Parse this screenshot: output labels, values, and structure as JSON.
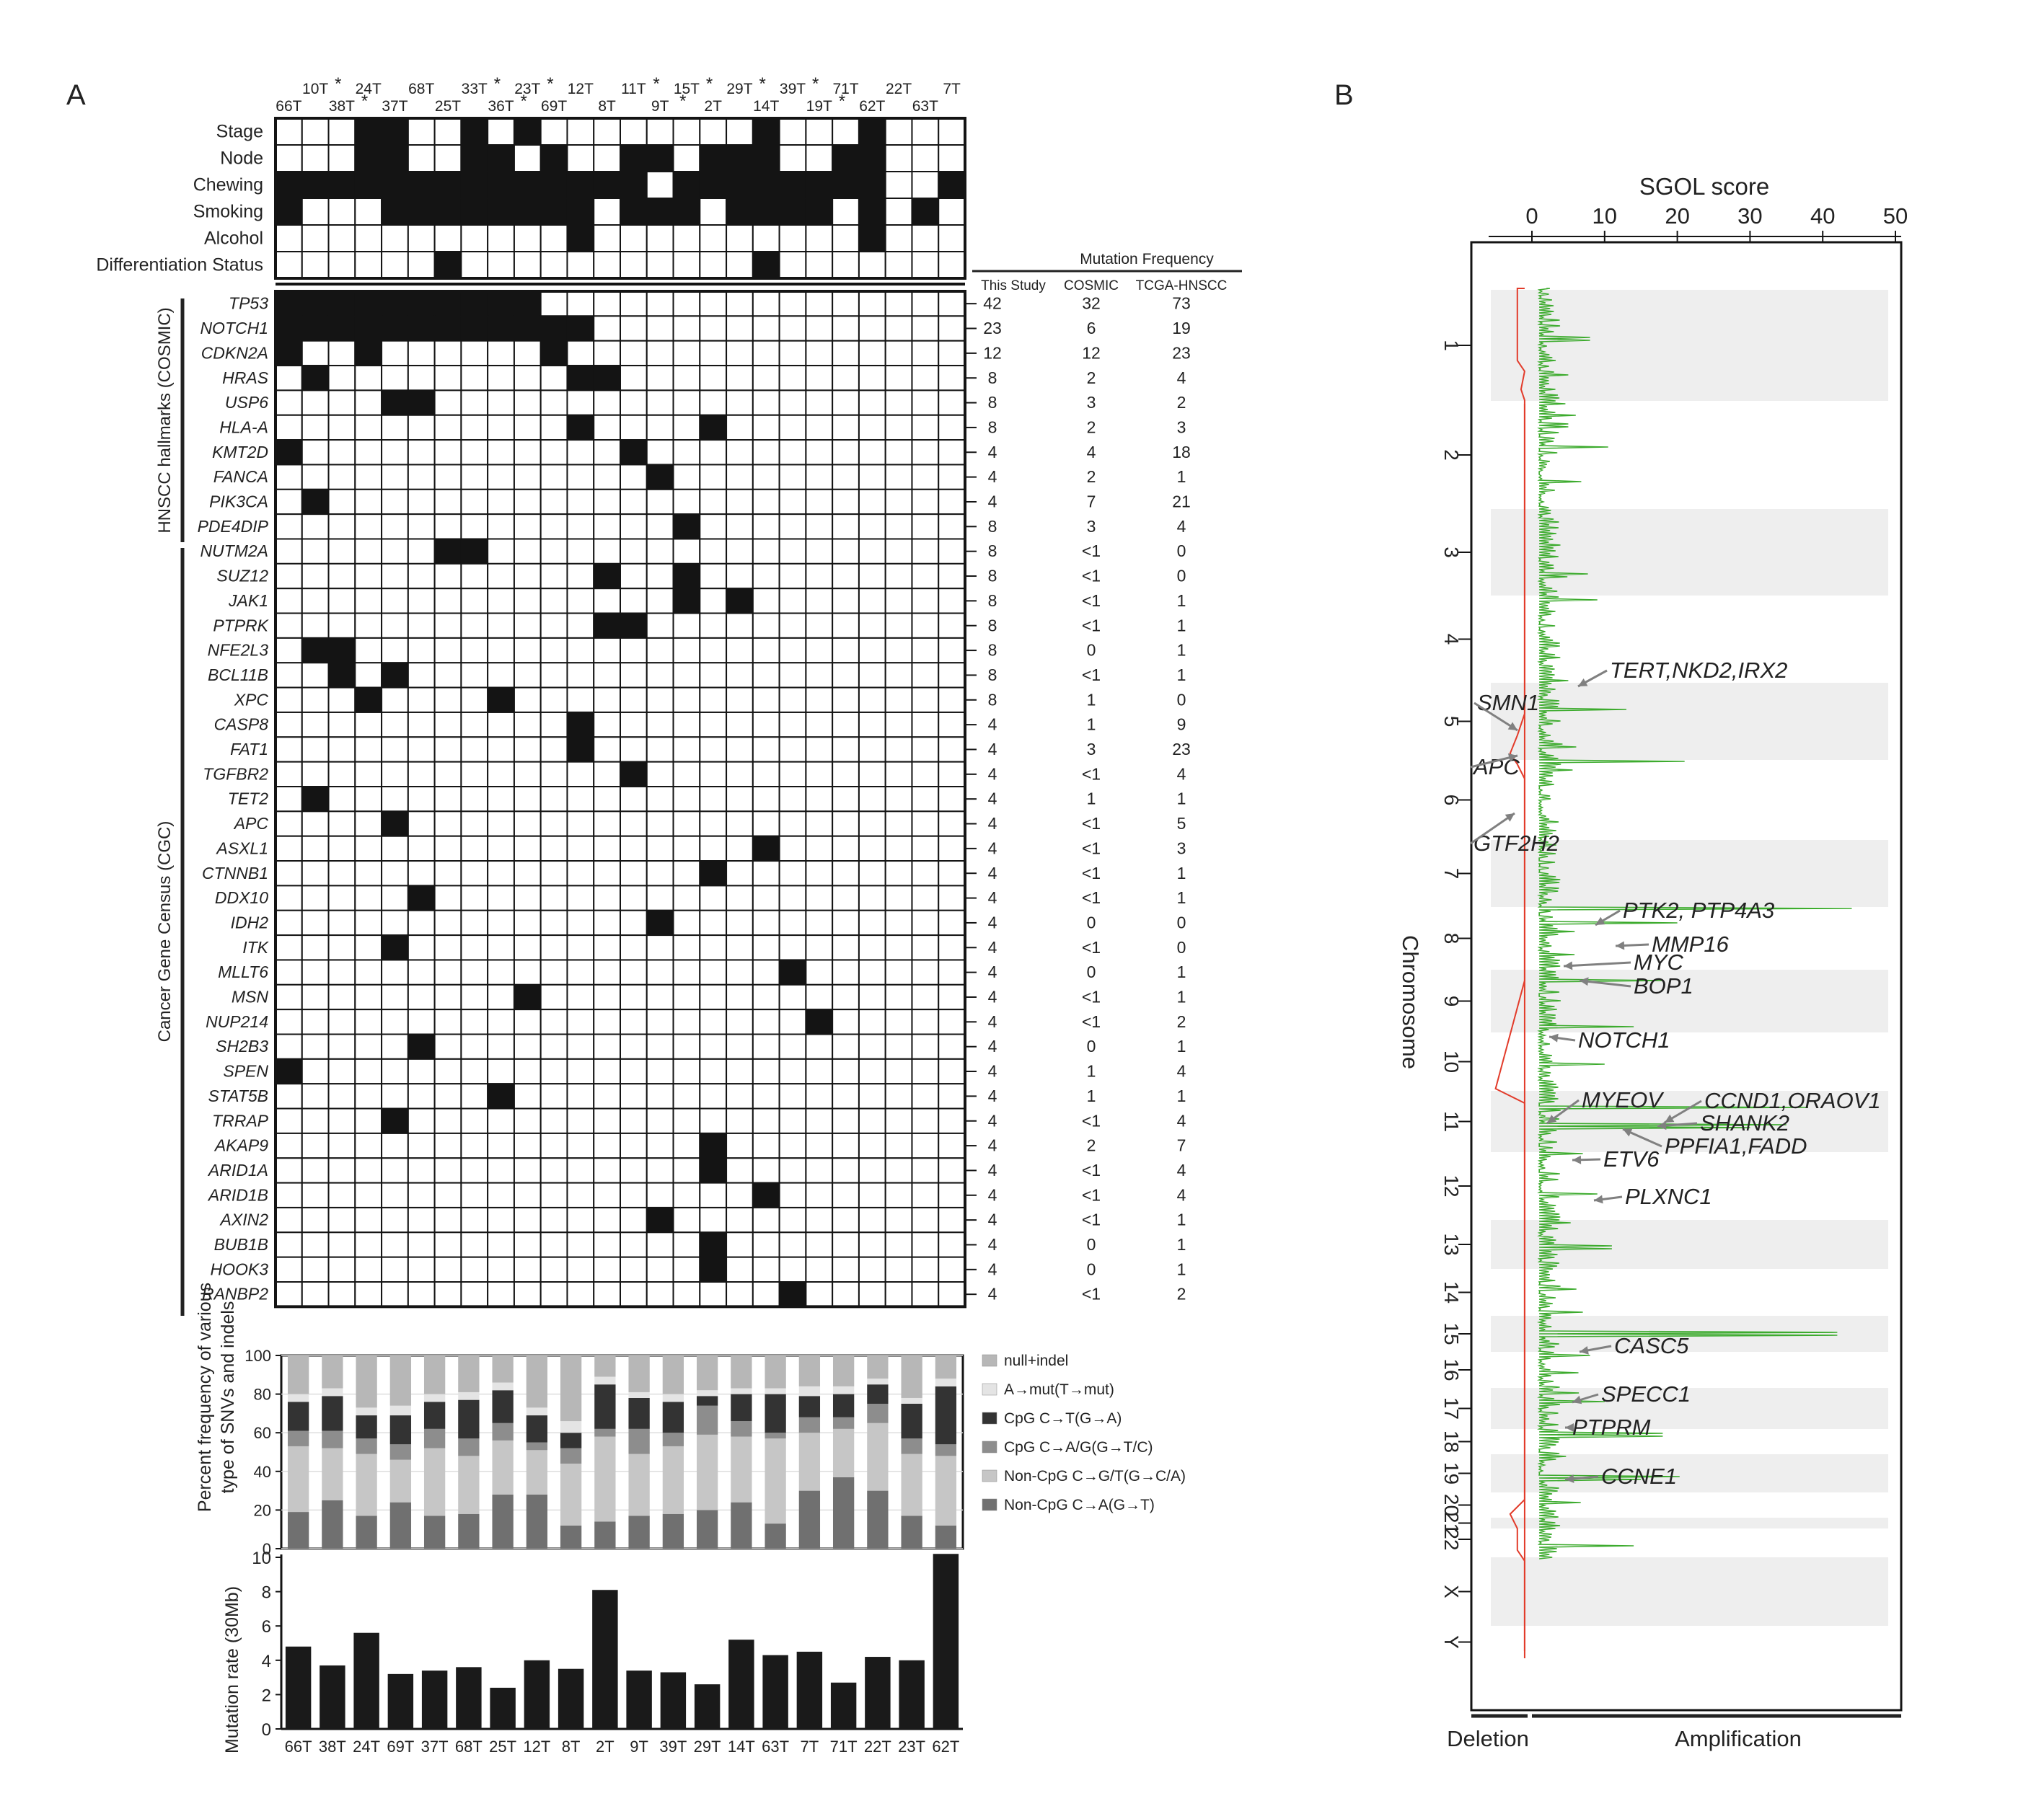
{
  "panels": {
    "a_label": "A",
    "b_label": "B"
  },
  "samples_top": [
    {
      "id": "66T",
      "star": false
    },
    {
      "id": "10T",
      "star": true
    },
    {
      "id": "38T",
      "star": true
    },
    {
      "id": "24T",
      "star": false
    },
    {
      "id": "37T",
      "star": false
    },
    {
      "id": "68T",
      "star": false
    },
    {
      "id": "25T",
      "star": false
    },
    {
      "id": "33T",
      "star": true
    },
    {
      "id": "36T",
      "star": true
    },
    {
      "id": "23T",
      "star": true
    },
    {
      "id": "69T",
      "star": false
    },
    {
      "id": "12T",
      "star": false
    },
    {
      "id": "8T",
      "star": false
    },
    {
      "id": "11T",
      "star": true
    },
    {
      "id": "9T",
      "star": true
    },
    {
      "id": "15T",
      "star": true
    },
    {
      "id": "2T",
      "star": false
    },
    {
      "id": "29T",
      "star": true
    },
    {
      "id": "14T",
      "star": false
    },
    {
      "id": "39T",
      "star": true
    },
    {
      "id": "19T",
      "star": true
    },
    {
      "id": "71T",
      "star": false
    },
    {
      "id": "62T",
      "star": false
    },
    {
      "id": "22T",
      "star": false
    },
    {
      "id": "63T",
      "star": false
    },
    {
      "id": "7T",
      "star": false
    }
  ],
  "clinical": {
    "rows": [
      {
        "label": "Stage",
        "filled": [
          3,
          4,
          7,
          9,
          18,
          22
        ]
      },
      {
        "label": "Node",
        "filled": [
          3,
          4,
          7,
          8,
          10,
          13,
          14,
          16,
          17,
          18,
          21,
          22
        ]
      },
      {
        "label": "Chewing",
        "filled": [
          0,
          1,
          2,
          3,
          4,
          5,
          6,
          7,
          8,
          9,
          10,
          11,
          12,
          13,
          15,
          16,
          17,
          18,
          19,
          20,
          21,
          22,
          25
        ]
      },
      {
        "label": "Smoking",
        "filled": [
          0,
          4,
          5,
          6,
          7,
          8,
          9,
          10,
          11,
          13,
          14,
          15,
          17,
          18,
          19,
          20,
          22,
          24
        ]
      },
      {
        "label": "Alcohol",
        "filled": [
          11,
          22
        ]
      },
      {
        "label": "Differentiation Status",
        "filled": [
          6,
          18
        ]
      }
    ]
  },
  "freq_header": {
    "title": "Mutation Frequency",
    "col1": "This Study",
    "col2": "COSMIC",
    "col3": "TCGA-HNSCC"
  },
  "group_labels": {
    "hnscc": "HNSCC hallmarks (COSMIC)",
    "cgc": "Cancer Gene Census (CGC)"
  },
  "genes": [
    {
      "name": "TP53",
      "filled": [
        0,
        1,
        2,
        3,
        4,
        5,
        6,
        7,
        8,
        9
      ],
      "study": "42",
      "cosmic": "32",
      "tcga": "73"
    },
    {
      "name": "NOTCH1",
      "filled": [
        0,
        1,
        2,
        3,
        4,
        5,
        6,
        7,
        8,
        9,
        10,
        11
      ],
      "study": "23",
      "cosmic": "6",
      "tcga": "19"
    },
    {
      "name": "CDKN2A",
      "filled": [
        0,
        3,
        10
      ],
      "study": "12",
      "cosmic": "12",
      "tcga": "23"
    },
    {
      "name": "HRAS",
      "filled": [
        1,
        11,
        12
      ],
      "study": "8",
      "cosmic": "2",
      "tcga": "4"
    },
    {
      "name": "USP6",
      "filled": [
        4,
        5
      ],
      "study": "8",
      "cosmic": "3",
      "tcga": "2"
    },
    {
      "name": "HLA-A",
      "filled": [
        11,
        16
      ],
      "study": "8",
      "cosmic": "2",
      "tcga": "3"
    },
    {
      "name": "KMT2D",
      "filled": [
        0,
        13
      ],
      "study": "4",
      "cosmic": "4",
      "tcga": "18"
    },
    {
      "name": "FANCA",
      "filled": [
        14
      ],
      "study": "4",
      "cosmic": "2",
      "tcga": "1"
    },
    {
      "name": "PIK3CA",
      "filled": [
        1
      ],
      "study": "4",
      "cosmic": "7",
      "tcga": "21"
    },
    {
      "name": "PDE4DIP",
      "filled": [
        15
      ],
      "study": "8",
      "cosmic": "3",
      "tcga": "4"
    },
    {
      "name": "NUTM2A",
      "filled": [
        6,
        7
      ],
      "study": "8",
      "cosmic": "<1",
      "tcga": "0"
    },
    {
      "name": "SUZ12",
      "filled": [
        12,
        15
      ],
      "study": "8",
      "cosmic": "<1",
      "tcga": "0"
    },
    {
      "name": "JAK1",
      "filled": [
        15,
        17
      ],
      "study": "8",
      "cosmic": "<1",
      "tcga": "1"
    },
    {
      "name": "PTPRK",
      "filled": [
        12,
        13
      ],
      "study": "8",
      "cosmic": "<1",
      "tcga": "1"
    },
    {
      "name": "NFE2L3",
      "filled": [
        1,
        2
      ],
      "study": "8",
      "cosmic": "0",
      "tcga": "1"
    },
    {
      "name": "BCL11B",
      "filled": [
        2,
        4
      ],
      "study": "8",
      "cosmic": "<1",
      "tcga": "1"
    },
    {
      "name": "XPC",
      "filled": [
        3,
        8
      ],
      "study": "8",
      "cosmic": "1",
      "tcga": "0"
    },
    {
      "name": "CASP8",
      "filled": [
        11
      ],
      "study": "4",
      "cosmic": "1",
      "tcga": "9"
    },
    {
      "name": "FAT1",
      "filled": [
        11
      ],
      "study": "4",
      "cosmic": "3",
      "tcga": "23"
    },
    {
      "name": "TGFBR2",
      "filled": [
        13
      ],
      "study": "4",
      "cosmic": "<1",
      "tcga": "4"
    },
    {
      "name": "TET2",
      "filled": [
        1
      ],
      "study": "4",
      "cosmic": "1",
      "tcga": "1"
    },
    {
      "name": "APC",
      "filled": [
        4
      ],
      "study": "4",
      "cosmic": "<1",
      "tcga": "5"
    },
    {
      "name": "ASXL1",
      "filled": [
        18
      ],
      "study": "4",
      "cosmic": "<1",
      "tcga": "3"
    },
    {
      "name": "CTNNB1",
      "filled": [
        16
      ],
      "study": "4",
      "cosmic": "<1",
      "tcga": "1"
    },
    {
      "name": "DDX10",
      "filled": [
        5
      ],
      "study": "4",
      "cosmic": "<1",
      "tcga": "1"
    },
    {
      "name": "IDH2",
      "filled": [
        14
      ],
      "study": "4",
      "cosmic": "0",
      "tcga": "0"
    },
    {
      "name": "ITK",
      "filled": [
        4
      ],
      "study": "4",
      "cosmic": "<1",
      "tcga": "0"
    },
    {
      "name": "MLLT6",
      "filled": [
        19
      ],
      "study": "4",
      "cosmic": "0",
      "tcga": "1"
    },
    {
      "name": "MSN",
      "filled": [
        9
      ],
      "study": "4",
      "cosmic": "<1",
      "tcga": "1"
    },
    {
      "name": "NUP214",
      "filled": [
        20
      ],
      "study": "4",
      "cosmic": "<1",
      "tcga": "2"
    },
    {
      "name": "SH2B3",
      "filled": [
        5
      ],
      "study": "4",
      "cosmic": "0",
      "tcga": "1"
    },
    {
      "name": "SPEN",
      "filled": [
        0
      ],
      "study": "4",
      "cosmic": "1",
      "tcga": "4"
    },
    {
      "name": "STAT5B",
      "filled": [
        8
      ],
      "study": "4",
      "cosmic": "1",
      "tcga": "1"
    },
    {
      "name": "TRRAP",
      "filled": [
        4
      ],
      "study": "4",
      "cosmic": "<1",
      "tcga": "4"
    },
    {
      "name": "AKAP9",
      "filled": [
        16
      ],
      "study": "4",
      "cosmic": "2",
      "tcga": "7"
    },
    {
      "name": "ARID1A",
      "filled": [
        16
      ],
      "study": "4",
      "cosmic": "<1",
      "tcga": "4"
    },
    {
      "name": "ARID1B",
      "filled": [
        18
      ],
      "study": "4",
      "cosmic": "<1",
      "tcga": "4"
    },
    {
      "name": "AXIN2",
      "filled": [
        14
      ],
      "study": "4",
      "cosmic": "<1",
      "tcga": "1"
    },
    {
      "name": "BUB1B",
      "filled": [
        16
      ],
      "study": "4",
      "cosmic": "0",
      "tcga": "1"
    },
    {
      "name": "HOOK3",
      "filled": [
        16
      ],
      "study": "4",
      "cosmic": "0",
      "tcga": "1"
    },
    {
      "name": "RANBP2",
      "filled": [
        19
      ],
      "study": "4",
      "cosmic": "<1",
      "tcga": "2"
    }
  ],
  "spectrum": {
    "ylabel_line1": "Percent frequency of various",
    "ylabel_line2": "type of SNVs and indels",
    "yticks": [
      "0",
      "20",
      "40",
      "60",
      "80",
      "100"
    ],
    "legend": [
      {
        "label": "null+indel",
        "color": "#b7b7b7"
      },
      {
        "label": "A→mut(T→mut)",
        "color": "#e4e4e4"
      },
      {
        "label": "CpG C→T(G→A)",
        "color": "#333333"
      },
      {
        "label": "CpG C→A/G(G→T/C)",
        "color": "#8d8d8d"
      },
      {
        "label": "Non-CpG C→G/T(G→C/A)",
        "color": "#c6c6c6"
      },
      {
        "label": "Non-CpG C→A(G→T)",
        "color": "#707070"
      }
    ]
  },
  "chart_data": [
    {
      "type": "bar",
      "subtype": "stacked-percent",
      "ylabel": "Percent frequency of various type of SNVs and indels",
      "ylim": [
        0,
        100
      ],
      "categories": [
        "66T",
        "38T",
        "24T",
        "69T",
        "37T",
        "68T",
        "25T",
        "12T",
        "8T",
        "2T",
        "9T",
        "39T",
        "29T",
        "14T",
        "63T",
        "7T",
        "71T",
        "22T",
        "23T",
        "62T"
      ],
      "series": [
        {
          "name": "Non-CpG C→A(G→T)",
          "values": [
            19,
            25,
            17,
            24,
            17,
            18,
            28,
            28,
            12,
            14,
            17,
            18,
            20,
            24,
            13,
            30,
            37,
            30,
            17,
            12
          ]
        },
        {
          "name": "Non-CpG C→G/T(G→C/A)",
          "values": [
            34,
            27,
            32,
            22,
            35,
            30,
            28,
            23,
            32,
            44,
            32,
            35,
            39,
            34,
            44,
            30,
            25,
            35,
            32,
            36
          ]
        },
        {
          "name": "CpG C→A/G(G→T/C)",
          "values": [
            8,
            9,
            8,
            8,
            10,
            9,
            9,
            4,
            8,
            4,
            13,
            7,
            15,
            8,
            3,
            8,
            6,
            10,
            8,
            6
          ]
        },
        {
          "name": "CpG C→T(G→A)",
          "values": [
            15,
            18,
            12,
            15,
            14,
            20,
            17,
            14,
            8,
            23,
            16,
            16,
            5,
            14,
            20,
            11,
            12,
            10,
            18,
            30
          ]
        },
        {
          "name": "A→mut(T→mut)",
          "values": [
            4,
            4,
            4,
            5,
            4,
            4,
            4,
            4,
            6,
            4,
            3,
            4,
            3,
            3,
            3,
            5,
            4,
            3,
            3,
            4
          ]
        },
        {
          "name": "null+indel",
          "values": [
            20,
            17,
            27,
            26,
            20,
            19,
            14,
            27,
            34,
            11,
            19,
            20,
            18,
            17,
            17,
            16,
            16,
            12,
            22,
            12
          ]
        }
      ]
    },
    {
      "type": "bar",
      "ylabel": "Mutation rate (30Mb)",
      "ylim": [
        0,
        10
      ],
      "categories": [
        "66T",
        "38T",
        "24T",
        "69T",
        "37T",
        "68T",
        "25T",
        "12T",
        "8T",
        "2T",
        "9T",
        "39T",
        "29T",
        "14T",
        "63T",
        "7T",
        "71T",
        "22T",
        "23T",
        "62T"
      ],
      "values": [
        4.8,
        3.7,
        5.6,
        3.2,
        3.4,
        3.6,
        2.4,
        4.0,
        3.5,
        8.1,
        3.4,
        3.3,
        2.6,
        5.2,
        4.3,
        4.5,
        2.7,
        4.2,
        4.0,
        10.2
      ],
      "yticks": [
        "0",
        "2",
        "4",
        "6",
        "8",
        "10"
      ]
    },
    {
      "type": "line",
      "title": "SGOL score",
      "xlabel": "SGOL score",
      "ylabel": "Chromosome",
      "xlim": [
        -5,
        50
      ],
      "xticks": [
        "0",
        "10",
        "20",
        "30",
        "40",
        "50"
      ],
      "chromosomes": [
        "1",
        "2",
        "3",
        "4",
        "5",
        "6",
        "7",
        "8",
        "9",
        "10",
        "11",
        "12",
        "13",
        "14",
        "15",
        "16",
        "17",
        "18",
        "19",
        "20",
        "21",
        "22",
        "X",
        "Y"
      ],
      "bottom_labels": {
        "deletion": "Deletion",
        "amplification": "Amplification"
      },
      "annotations": [
        {
          "text": "TERT,NKD2,IRX2",
          "chromosome": "5"
        },
        {
          "text": "SMN1",
          "chromosome": "5"
        },
        {
          "text": "APC",
          "chromosome": "5"
        },
        {
          "text": "GTF2H2",
          "chromosome": "5"
        },
        {
          "text": "PTK2, PTP4A3",
          "chromosome": "8"
        },
        {
          "text": "MMP16",
          "chromosome": "8"
        },
        {
          "text": "MYC",
          "chromosome": "8"
        },
        {
          "text": "BOP1",
          "chromosome": "8"
        },
        {
          "text": "NOTCH1",
          "chromosome": "9"
        },
        {
          "text": "MYEOV",
          "chromosome": "11"
        },
        {
          "text": "CCND1,ORAOV1",
          "chromosome": "11"
        },
        {
          "text": "SHANK2",
          "chromosome": "11"
        },
        {
          "text": "PPFIA1,FADD",
          "chromosome": "11"
        },
        {
          "text": "ETV6",
          "chromosome": "12"
        },
        {
          "text": "PLXNC1",
          "chromosome": "12"
        },
        {
          "text": "CASC5",
          "chromosome": "15"
        },
        {
          "text": "SPECC1",
          "chromosome": "17"
        },
        {
          "text": "PTPRM",
          "chromosome": "18"
        },
        {
          "text": "CCNE1",
          "chromosome": "19"
        }
      ],
      "series": [
        {
          "name": "Amplification",
          "color": "#3dab2e"
        },
        {
          "name": "Deletion",
          "color": "#e23b2a"
        }
      ]
    }
  ]
}
